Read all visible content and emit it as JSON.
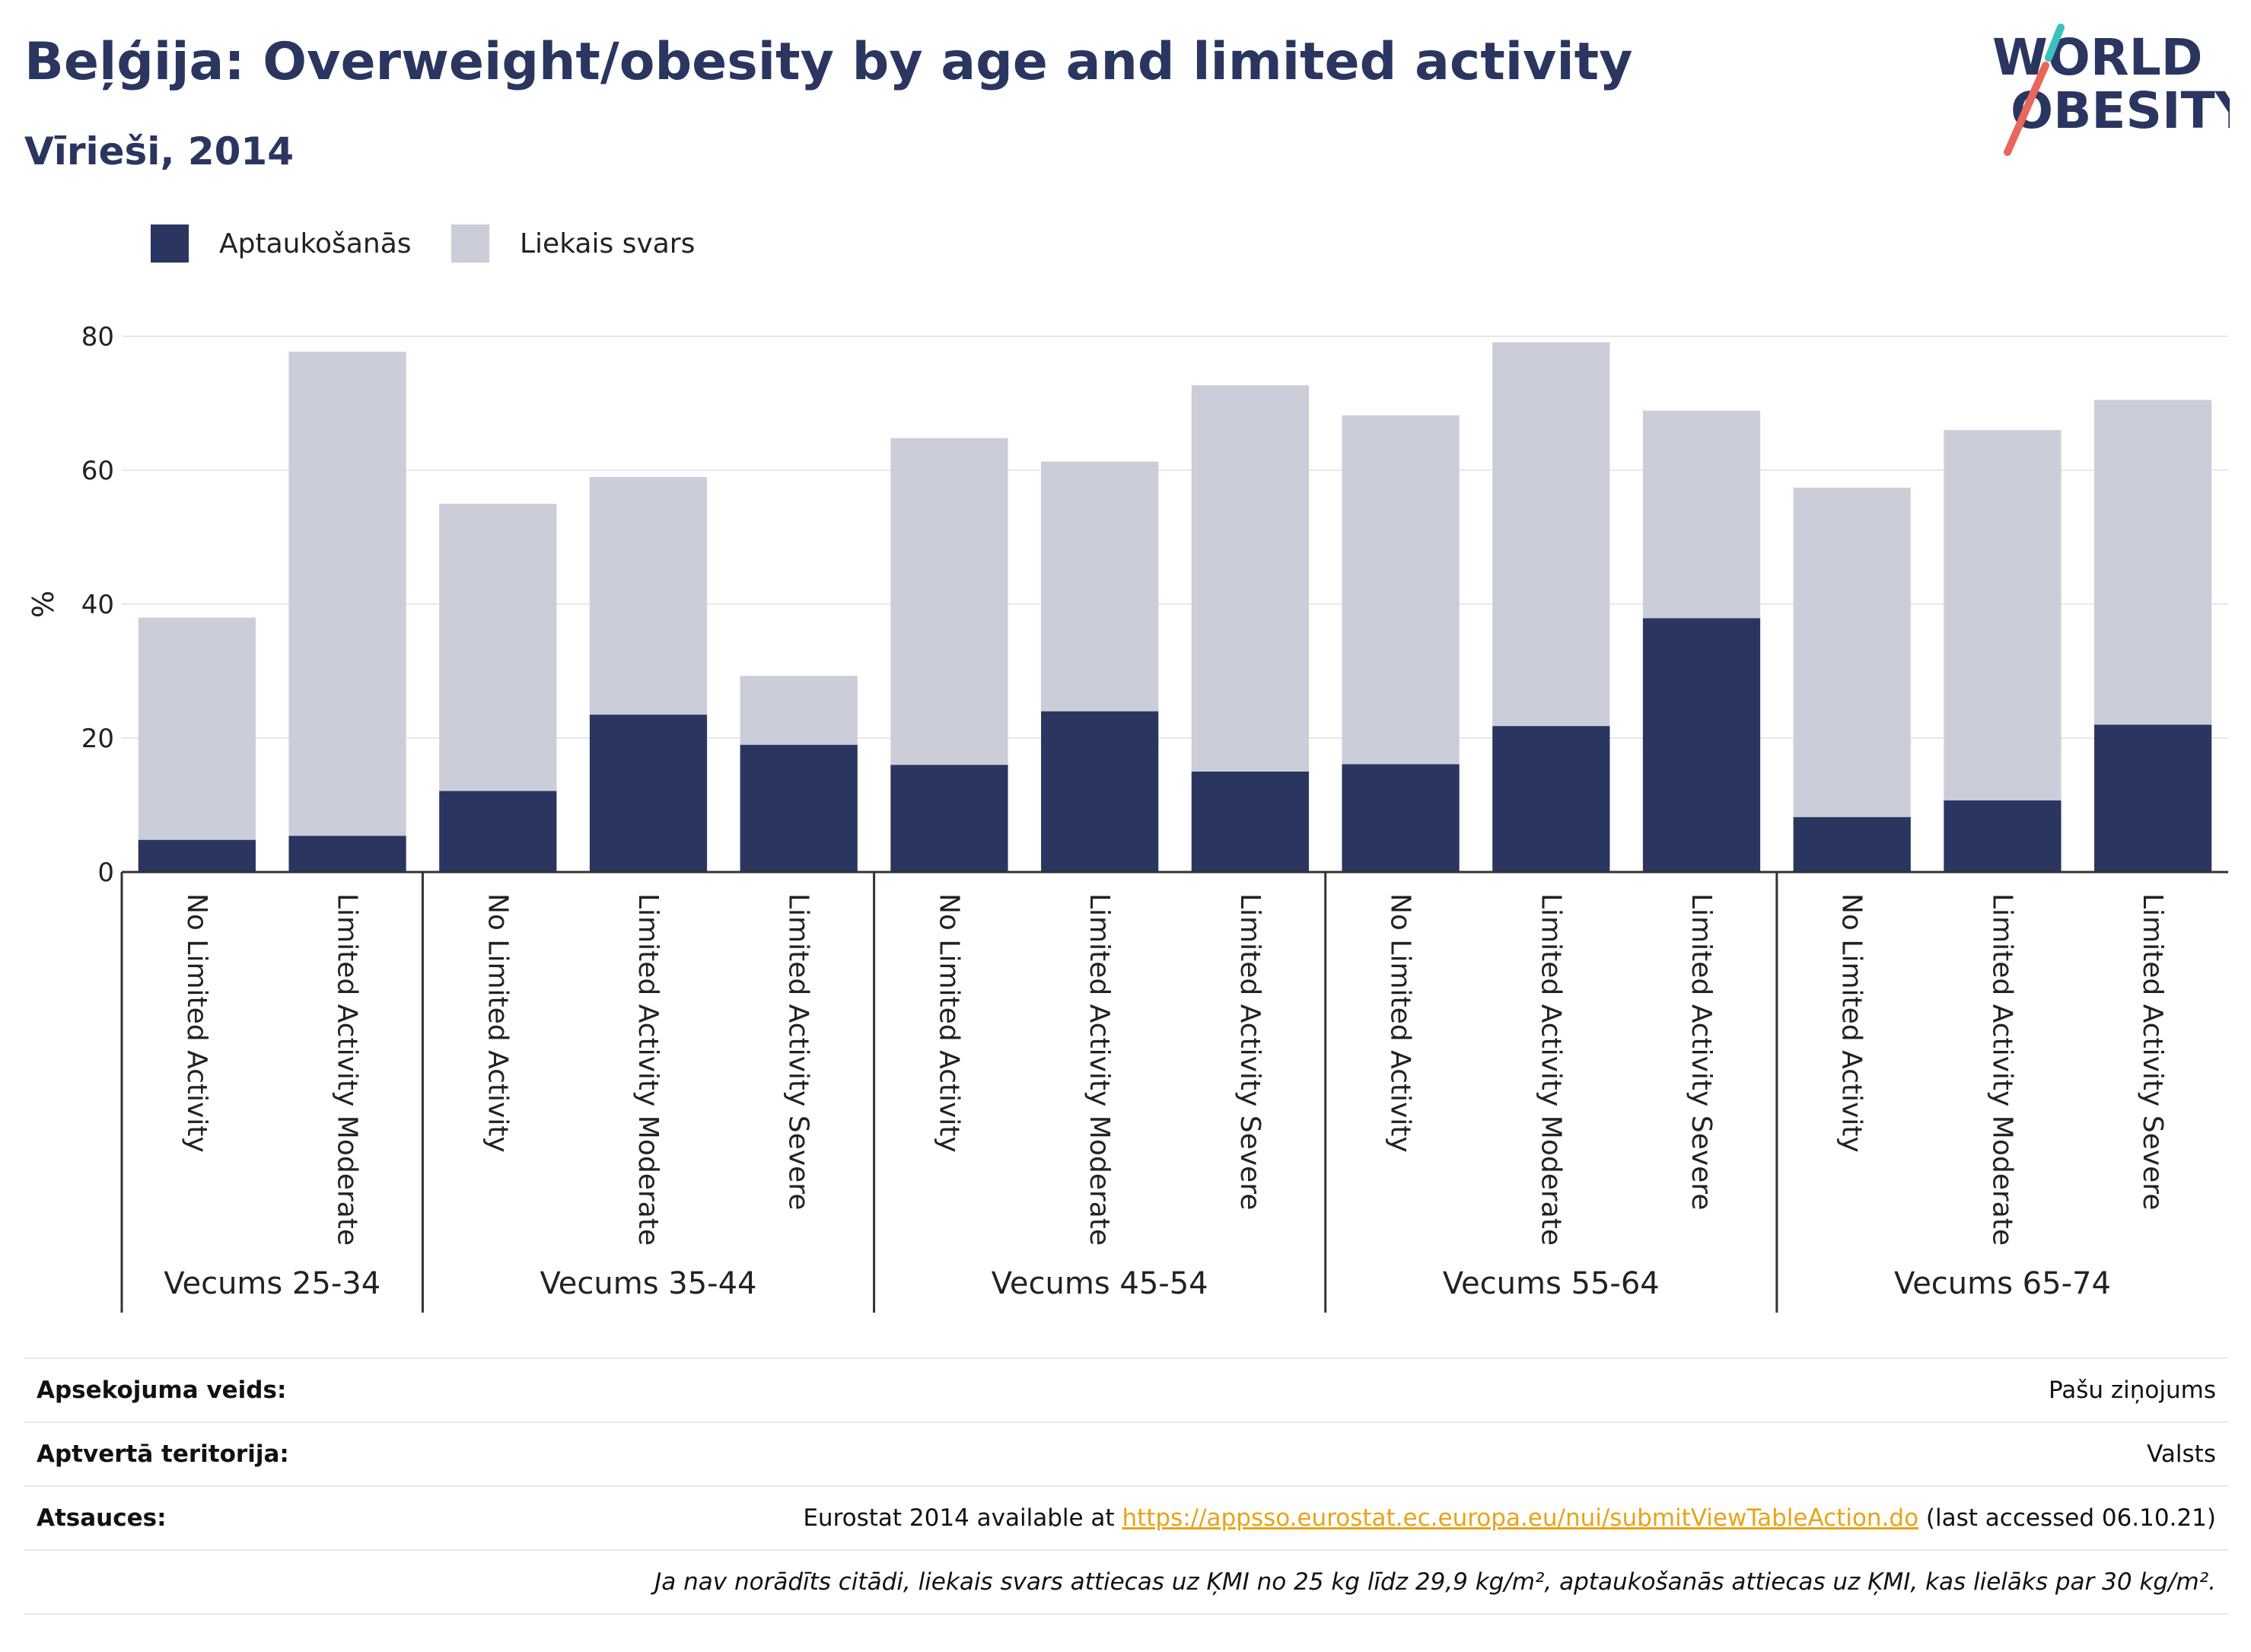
{
  "title": "Beļģija: Overweight/obesity by age and limited activity",
  "subtitle": "Vīrieši, 2014",
  "logo": {
    "line1": "WORLD",
    "line2": "OBESITY"
  },
  "colors": {
    "obesity": "#2a3560",
    "overweight": "#cbcdd9",
    "accent_red": "#e8675a",
    "accent_teal": "#3bbfbf"
  },
  "legend": [
    {
      "label": "Aptaukošanās",
      "color": "#2a3560"
    },
    {
      "label": "Liekais svars",
      "color": "#cbcdd9"
    }
  ],
  "chart_data": {
    "type": "bar",
    "stacked": true,
    "ylabel": "%",
    "ylim": [
      0,
      80
    ],
    "yticks": [
      0,
      20,
      40,
      60,
      80
    ],
    "grid": true,
    "legend_position": "top-left",
    "groups": [
      {
        "label": "Vecums 25-34",
        "categories": [
          "No Limited Activity",
          "Limited Activity Moderate"
        ]
      },
      {
        "label": "Vecums 35-44",
        "categories": [
          "No Limited Activity",
          "Limited Activity Moderate",
          "Limited Activity Severe"
        ]
      },
      {
        "label": "Vecums 45-54",
        "categories": [
          "No Limited Activity",
          "Limited Activity Moderate",
          "Limited Activity Severe"
        ]
      },
      {
        "label": "Vecums 55-64",
        "categories": [
          "No Limited Activity",
          "Limited Activity Moderate",
          "Limited Activity Severe"
        ]
      },
      {
        "label": "Vecums 65-74",
        "categories": [
          "No Limited Activity",
          "Limited Activity Moderate",
          "Limited Activity Severe"
        ]
      }
    ],
    "series": [
      {
        "name": "Aptaukošanās",
        "values": [
          4.8,
          5.4,
          12.1,
          23.5,
          19.0,
          16.0,
          24.0,
          15.0,
          16.1,
          21.8,
          37.9,
          8.2,
          10.7,
          22.0
        ]
      },
      {
        "name": "Liekais svars",
        "values": [
          33.2,
          72.3,
          42.9,
          35.5,
          10.3,
          48.8,
          37.3,
          57.7,
          52.1,
          57.3,
          31.0,
          49.2,
          55.3,
          48.5
        ]
      }
    ]
  },
  "meta": {
    "survey_label": "Apsekojuma veids:",
    "survey_value": "Pašu ziņojums",
    "coverage_label": "Aptvertā teritorija:",
    "coverage_value": "Valsts",
    "refs_label": "Atsauces:",
    "refs_prefix": "Eurostat 2014 available at ",
    "refs_link": "https://appsso.eurostat.ec.europa.eu/nui/submitViewTableAction.do",
    "refs_suffix": " (last accessed 06.10.21)",
    "note": "Ja nav norādīts citādi, liekais svars attiecas uz ĶMI no 25 kg līdz 29,9 kg/m², aptaukošanās attiecas uz ĶMI, kas lielāks par 30 kg/m²."
  }
}
